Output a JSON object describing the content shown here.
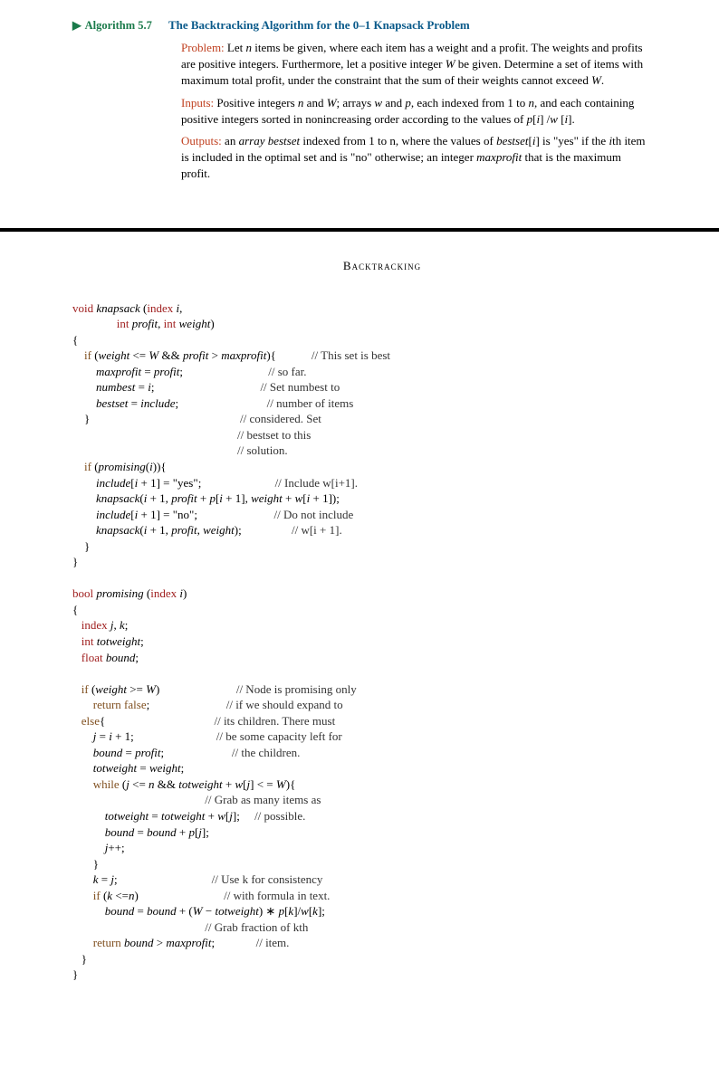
{
  "header": {
    "algo_label": "Algorithm 5.7",
    "algo_title": "The Backtracking Algorithm for the 0–1 Knapsack Problem"
  },
  "description": {
    "problem_label": "Problem:",
    "problem_text": " Let n items be given, where each item has a weight and a profit. The weights and profits are positive integers. Furthermore, let a positive integer W be given. Determine a set of items with maximum total profit, under the constraint that the sum of their weights cannot exceed W.",
    "inputs_label": "Inputs:",
    "inputs_text": " Positive integers n and W; arrays w and p, each indexed from 1 to n, and each containing positive integers sorted in nonincreasing order according to the values of p[i]/w[i].",
    "outputs_label": "Outputs:",
    "outputs_text": " an array bestset indexed from 1 to n, where the values of bestset[i] is \"yes\" if the ith item is included in the optimal set and is \"no\" otherwise; an integer maxprofit that is the maximum profit."
  },
  "section_title": "Backtracking",
  "code": {
    "void": "void",
    "bool": "bool",
    "int_kw": "int",
    "float_kw": "float",
    "index_kw": "index",
    "if_kw": "if",
    "else_kw": "else",
    "while_kw": "while",
    "return_kw": "return",
    "knapsack": "knapsack",
    "promising": "promising",
    "false_kw": "false",
    "i": "i",
    "j": "j",
    "k": "k",
    "n": "n",
    "W": "W",
    "profit": "profit",
    "weight": "weight",
    "maxprofit": "maxprofit",
    "numbest": "numbest",
    "bestset": "bestset",
    "include": "include",
    "totweight": "totweight",
    "bound": "bound",
    "p": "p",
    "w": "w",
    "yes": "\"yes\"",
    "no": "\"no\"",
    "c1": "// This set is best",
    "c2": "// so far.",
    "c3": "// Set numbest to",
    "c4": "// number of items",
    "c5": "// considered. Set",
    "c6": "// bestset to this",
    "c7": "// solution.",
    "c8": "// Include w[i+1].",
    "c9": "// Do not include",
    "c10": "// w[i + 1].",
    "c11": "// Node is promising only",
    "c12": "// if we should expand to",
    "c13": "// its children. There must",
    "c14": "// be some capacity left for",
    "c15": "// the children.",
    "c16": "// Grab as many items as",
    "c17": "// possible.",
    "c18": "// Use k for consistency",
    "c19": "// with formula in text.",
    "c20": "// Grab fraction of kth",
    "c21": "// item."
  }
}
